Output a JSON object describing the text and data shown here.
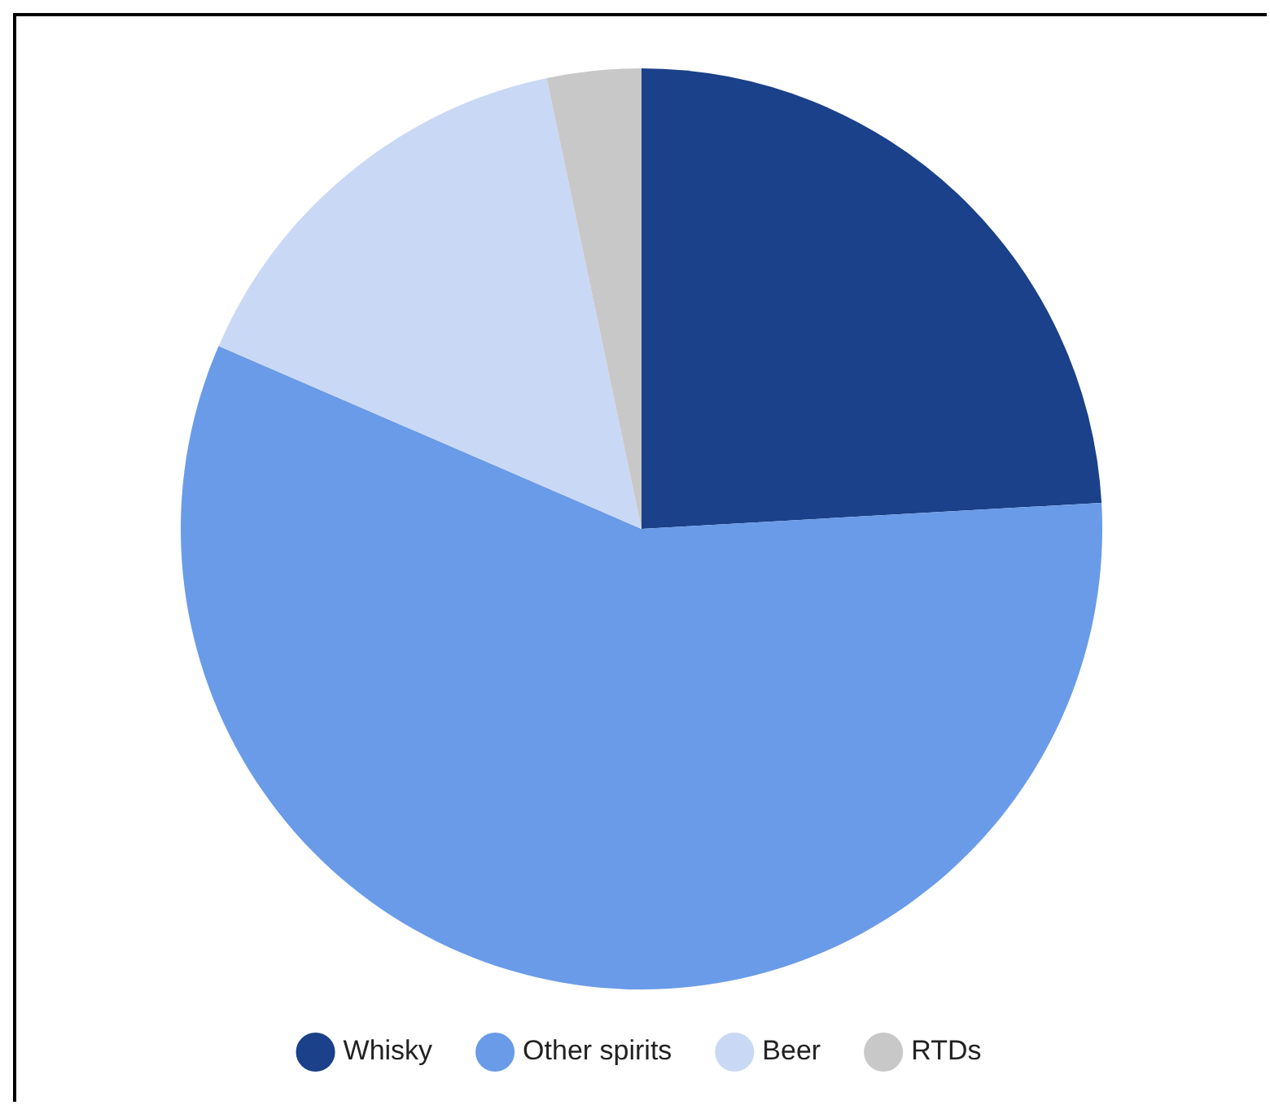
{
  "chart_data": {
    "type": "pie",
    "categories": [
      "Whisky",
      "Other spirits",
      "Beer",
      "RTDs"
    ],
    "values": [
      24.1,
      57.4,
      15.2,
      3.3
    ],
    "colors": [
      "#1a4189",
      "#6a9be8",
      "#c9d8f5",
      "#c8c8c8"
    ],
    "legend": "bottom"
  }
}
